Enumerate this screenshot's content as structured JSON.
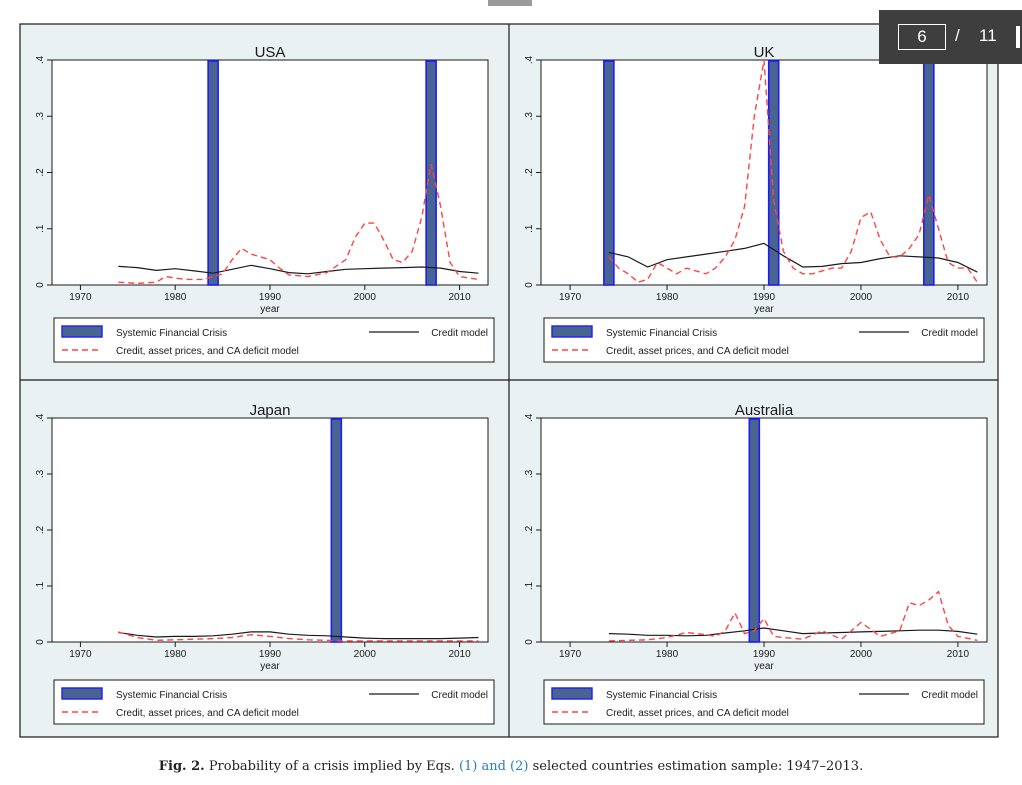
{
  "pager": {
    "current_page": "6",
    "separator": "/",
    "total_pages": "11"
  },
  "caption": {
    "fig_label": "Fig. 2.",
    "text_before_link": "Probability of a crisis implied by Eqs.",
    "link_text": "(1) and (2)",
    "text_after_link": "selected countries estimation sample: 1947–2013."
  },
  "legend": {
    "crisis": "Systemic Financial Crisis",
    "credit": "Credit model",
    "full": "Credit, asset prices, and CA deficit model"
  },
  "colors": {
    "crisis_fill": "#4a6490",
    "crisis_edge": "#1c1cff",
    "credit_line": "#1a1a1a",
    "full_line": "#ff4444"
  },
  "chart_data": [
    {
      "type": "line",
      "title": "USA",
      "xlabel": "year",
      "ylabel": "",
      "xlim": [
        1967,
        2013
      ],
      "ylim": [
        0,
        0.4
      ],
      "xticks": [
        1970,
        1980,
        1990,
        2000,
        2010
      ],
      "yticks": [
        0,
        0.1,
        0.2,
        0.3,
        0.4
      ],
      "ytick_labels": [
        "0",
        ".1",
        ".2",
        ".3",
        ".4"
      ],
      "crisis_years": [
        1984,
        2007
      ],
      "series": [
        {
          "name": "Credit model",
          "x": [
            1974,
            1976,
            1978,
            1980,
            1982,
            1984,
            1986,
            1988,
            1990,
            1992,
            1994,
            1996,
            1998,
            2000,
            2002,
            2004,
            2006,
            2008,
            2010,
            2012
          ],
          "y": [
            0.033,
            0.031,
            0.026,
            0.029,
            0.025,
            0.021,
            0.028,
            0.035,
            0.029,
            0.022,
            0.02,
            0.024,
            0.028,
            0.029,
            0.03,
            0.031,
            0.032,
            0.03,
            0.024,
            0.021
          ]
        },
        {
          "name": "Credit, asset prices, and CA deficit model",
          "x": [
            1974,
            1976,
            1978,
            1979,
            1981,
            1983,
            1985,
            1986,
            1987,
            1988,
            1990,
            1991,
            1992,
            1994,
            1996,
            1998,
            1999,
            2000,
            2001,
            2002,
            2003,
            2004,
            2005,
            2006,
            2007,
            2008,
            2009,
            2010,
            2012
          ],
          "y": [
            0.005,
            0.003,
            0.005,
            0.015,
            0.01,
            0.01,
            0.02,
            0.045,
            0.065,
            0.055,
            0.045,
            0.03,
            0.018,
            0.015,
            0.022,
            0.045,
            0.085,
            0.11,
            0.11,
            0.08,
            0.045,
            0.04,
            0.06,
            0.12,
            0.215,
            0.14,
            0.04,
            0.015,
            0.01
          ]
        }
      ]
    },
    {
      "type": "line",
      "title": "UK",
      "xlabel": "year",
      "ylabel": "",
      "xlim": [
        1967,
        2013
      ],
      "ylim": [
        0,
        0.4
      ],
      "xticks": [
        1970,
        1980,
        1990,
        2000,
        2010
      ],
      "yticks": [
        0,
        0.1,
        0.2,
        0.3,
        0.4
      ],
      "ytick_labels": [
        "0",
        ".1",
        ".2",
        ".3",
        ".4"
      ],
      "crisis_years": [
        1974,
        1991,
        2007
      ],
      "series": [
        {
          "name": "Credit model",
          "x": [
            1974,
            1976,
            1978,
            1980,
            1982,
            1984,
            1986,
            1988,
            1990,
            1992,
            1994,
            1996,
            1998,
            2000,
            2002,
            2004,
            2006,
            2008,
            2010,
            2012
          ],
          "y": [
            0.058,
            0.05,
            0.032,
            0.045,
            0.05,
            0.055,
            0.06,
            0.065,
            0.074,
            0.052,
            0.032,
            0.033,
            0.038,
            0.04,
            0.047,
            0.052,
            0.05,
            0.048,
            0.04,
            0.023
          ]
        },
        {
          "name": "Credit, asset prices, and CA deficit model",
          "x": [
            1974,
            1975,
            1976,
            1977,
            1978,
            1979,
            1980,
            1981,
            1982,
            1983,
            1984,
            1985,
            1986,
            1987,
            1988,
            1989,
            1990,
            1991,
            1992,
            1993,
            1994,
            1995,
            1996,
            1997,
            1998,
            1999,
            2000,
            2001,
            2002,
            2003,
            2004,
            2005,
            2006,
            2007,
            2008,
            2009,
            2010,
            2011,
            2012
          ],
          "y": [
            0.05,
            0.03,
            0.02,
            0.005,
            0.01,
            0.04,
            0.03,
            0.02,
            0.03,
            0.025,
            0.02,
            0.03,
            0.05,
            0.08,
            0.14,
            0.3,
            0.4,
            0.15,
            0.06,
            0.03,
            0.02,
            0.02,
            0.025,
            0.03,
            0.03,
            0.06,
            0.12,
            0.13,
            0.08,
            0.05,
            0.05,
            0.065,
            0.09,
            0.16,
            0.1,
            0.04,
            0.03,
            0.03,
            0.005
          ]
        }
      ]
    },
    {
      "type": "line",
      "title": "Japan",
      "xlabel": "year",
      "ylabel": "",
      "xlim": [
        1967,
        2013
      ],
      "ylim": [
        0,
        0.4
      ],
      "xticks": [
        1970,
        1980,
        1990,
        2000,
        2010
      ],
      "yticks": [
        0,
        0.1,
        0.2,
        0.3,
        0.4
      ],
      "ytick_labels": [
        "0",
        ".1",
        ".2",
        ".3",
        ".4"
      ],
      "crisis_years": [
        1997
      ],
      "series": [
        {
          "name": "Credit model",
          "x": [
            1974,
            1976,
            1978,
            1980,
            1982,
            1984,
            1986,
            1988,
            1990,
            1992,
            1994,
            1996,
            1998,
            2000,
            2002,
            2004,
            2006,
            2008,
            2010,
            2012
          ],
          "y": [
            0.017,
            0.012,
            0.009,
            0.01,
            0.01,
            0.011,
            0.014,
            0.018,
            0.018,
            0.014,
            0.012,
            0.011,
            0.009,
            0.007,
            0.006,
            0.006,
            0.006,
            0.006,
            0.007,
            0.008
          ]
        },
        {
          "name": "Credit, asset prices, and CA deficit model",
          "x": [
            1974,
            1976,
            1978,
            1980,
            1982,
            1984,
            1986,
            1988,
            1990,
            1992,
            1994,
            1996,
            1998,
            2000,
            2002,
            2004,
            2006,
            2008,
            2010,
            2012
          ],
          "y": [
            0.018,
            0.008,
            0.003,
            0.004,
            0.005,
            0.006,
            0.008,
            0.013,
            0.01,
            0.006,
            0.004,
            0.003,
            0.002,
            0.002,
            0.002,
            0.002,
            0.002,
            0.002,
            0.002,
            0.002
          ]
        }
      ]
    },
    {
      "type": "line",
      "title": "Australia",
      "xlabel": "year",
      "ylabel": "",
      "xlim": [
        1967,
        2013
      ],
      "ylim": [
        0,
        0.4
      ],
      "xticks": [
        1970,
        1980,
        1990,
        2000,
        2010
      ],
      "yticks": [
        0,
        0.1,
        0.2,
        0.3,
        0.4
      ],
      "ytick_labels": [
        "0",
        ".1",
        ".2",
        ".3",
        ".4"
      ],
      "crisis_years": [
        1989
      ],
      "series": [
        {
          "name": "Credit model",
          "x": [
            1974,
            1976,
            1978,
            1980,
            1982,
            1984,
            1986,
            1988,
            1990,
            1992,
            1994,
            1996,
            1998,
            2000,
            2002,
            2004,
            2006,
            2008,
            2010,
            2012
          ],
          "y": [
            0.015,
            0.014,
            0.012,
            0.012,
            0.011,
            0.012,
            0.016,
            0.02,
            0.025,
            0.02,
            0.015,
            0.016,
            0.017,
            0.018,
            0.019,
            0.02,
            0.021,
            0.021,
            0.019,
            0.014
          ]
        },
        {
          "name": "Credit, asset prices, and CA deficit model",
          "x": [
            1974,
            1976,
            1978,
            1980,
            1982,
            1984,
            1985,
            1986,
            1987,
            1988,
            1989,
            1990,
            1991,
            1992,
            1994,
            1996,
            1998,
            2000,
            2002,
            2004,
            2005,
            2006,
            2007,
            2008,
            2009,
            2010,
            2012
          ],
          "y": [
            0.002,
            0.003,
            0.004,
            0.008,
            0.017,
            0.013,
            0.01,
            0.02,
            0.052,
            0.015,
            0.02,
            0.042,
            0.01,
            0.008,
            0.005,
            0.02,
            0.005,
            0.035,
            0.01,
            0.02,
            0.07,
            0.065,
            0.075,
            0.09,
            0.03,
            0.01,
            0.003
          ]
        }
      ]
    }
  ]
}
